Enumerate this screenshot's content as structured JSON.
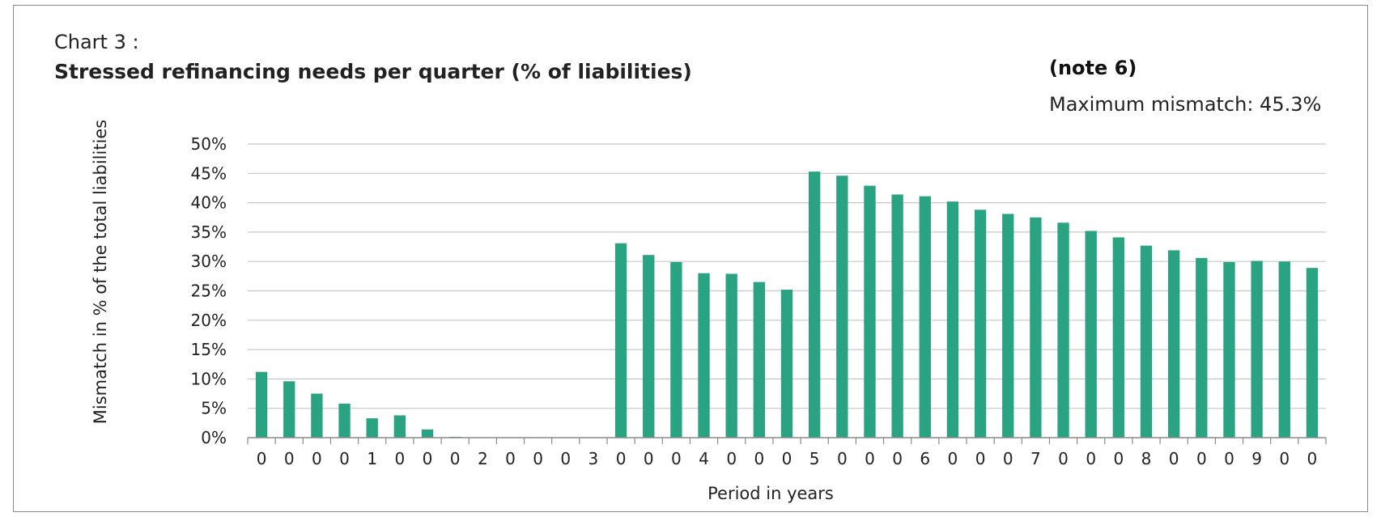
{
  "header": {
    "chart_label": "Chart 3 :",
    "title": "Stressed refinancing needs per quarter  (% of liabilities)",
    "note": "(note 6)",
    "max_mismatch": "Maximum mismatch: 45.3%"
  },
  "chart_data": {
    "type": "bar",
    "title": "Stressed refinancing needs per quarter  (% of liabilities)",
    "xlabel": "Period in years",
    "ylabel": "Mismatch in % of the total liabilities",
    "ylim": [
      0,
      50
    ],
    "y_ticks": [
      "0%",
      "5%",
      "10%",
      "15%",
      "20%",
      "25%",
      "30%",
      "35%",
      "40%",
      "45%",
      "50%"
    ],
    "categories": [
      "0",
      "0",
      "0",
      "0",
      "1",
      "0",
      "0",
      "0",
      "2",
      "0",
      "0",
      "0",
      "3",
      "0",
      "0",
      "0",
      "4",
      "0",
      "0",
      "0",
      "5",
      "0",
      "0",
      "0",
      "6",
      "0",
      "0",
      "0",
      "7",
      "0",
      "0",
      "0",
      "8",
      "0",
      "0",
      "0",
      "9",
      "0",
      "0"
    ],
    "values": [
      11.2,
      9.6,
      7.5,
      5.8,
      3.3,
      3.8,
      1.4,
      0.15,
      0,
      0,
      0,
      0,
      0,
      33.1,
      31.1,
      29.9,
      28.0,
      27.9,
      26.5,
      25.2,
      45.3,
      44.6,
      42.9,
      41.4,
      41.1,
      40.2,
      38.8,
      38.1,
      37.5,
      36.6,
      35.2,
      34.1,
      32.7,
      31.9,
      30.6,
      29.9,
      30.1,
      30.0,
      28.9
    ],
    "bar_color": "#2aa383",
    "grid": true,
    "legend": "none"
  }
}
